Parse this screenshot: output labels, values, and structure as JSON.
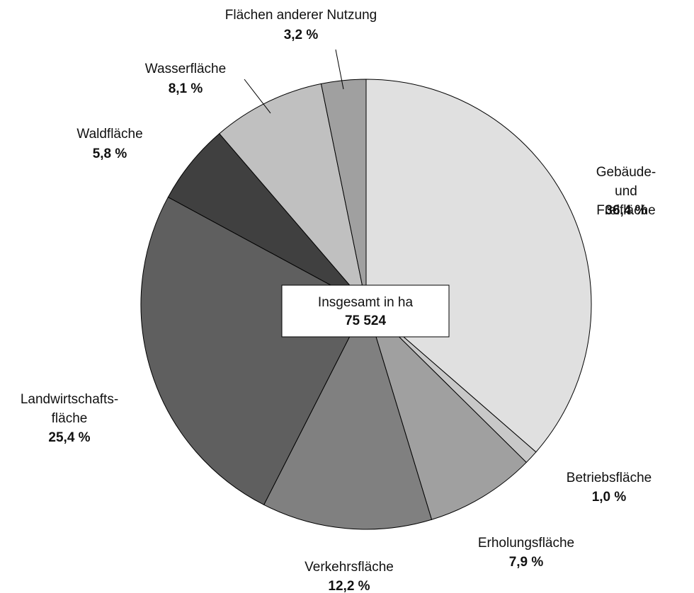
{
  "chart_data": {
    "type": "pie",
    "categories": [
      "Gebäude- und\nFreifläche",
      "Betriebsfläche",
      "Erholungsfläche",
      "Verkehrsfläche",
      "Landwirtschafts-\nfläche",
      "Waldfläche",
      "Wasserfläche",
      "Flächen anderer Nutzung"
    ],
    "values": [
      36.4,
      1.0,
      7.9,
      12.2,
      25.4,
      5.8,
      8.1,
      3.2
    ],
    "value_labels": [
      "36,4 %",
      "1,0 %",
      "7,9 %",
      "12,2 %",
      "25,4 %",
      "5,8 %",
      "8,1 %",
      "3,2 %"
    ],
    "colors": [
      "#e0e0e0",
      "#c8c8c8",
      "#a0a0a0",
      "#808080",
      "#5f5f5f",
      "#404040",
      "#c0c0c0",
      "#a0a0a0"
    ],
    "total_title": "Insgesamt in ha",
    "total": {
      "value": 75524,
      "label": "75 524"
    }
  }
}
